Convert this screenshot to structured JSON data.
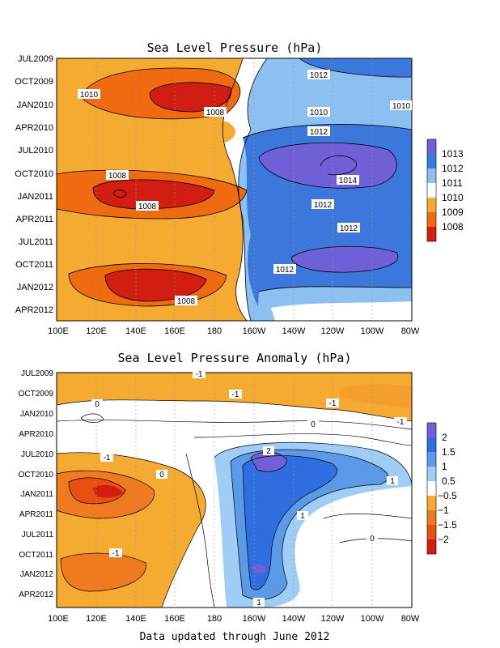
{
  "footer": "Data updated through June 2012",
  "chart_data": [
    {
      "type": "heatmap",
      "title": "Sea Level Pressure (hPa)",
      "x_ticks": [
        "100E",
        "120E",
        "140E",
        "160E",
        "180",
        "160W",
        "140W",
        "120W",
        "100W",
        "80W"
      ],
      "y_ticks": [
        "JUL2009",
        "OCT2009",
        "JAN2010",
        "APR2010",
        "JUL2010",
        "OCT2010",
        "JAN2011",
        "APR2011",
        "JUL2011",
        "OCT2011",
        "JAN2012",
        "APR2012"
      ],
      "colorbar": {
        "labels": [
          "1013",
          "1012",
          "1011",
          "1010",
          "1009",
          "1008"
        ],
        "colors": [
          "#7060d8",
          "#3c78dc",
          "#8cc0f0",
          "#ffffff",
          "#f5aa32",
          "#f06a10",
          "#d21e12"
        ]
      },
      "contour_labels": [
        "1012",
        "1010",
        "1008",
        "1010",
        "1010",
        "1012",
        "1008",
        "1014",
        "1008",
        "1012",
        "1012",
        "1012",
        "1008"
      ]
    },
    {
      "type": "heatmap",
      "title": "Sea Level Pressure Anomaly (hPa)",
      "x_ticks": [
        "100E",
        "120E",
        "140E",
        "160E",
        "180",
        "160W",
        "140W",
        "120W",
        "100W",
        "80W"
      ],
      "y_ticks": [
        "JUL2009",
        "OCT2009",
        "JAN2010",
        "APR2010",
        "JUL2010",
        "OCT2010",
        "JAN2011",
        "APR2011",
        "JUL2011",
        "OCT2011",
        "JAN2012",
        "APR2012"
      ],
      "colorbar": {
        "labels": [
          "2",
          "1.5",
          "1",
          "0.5",
          "−0.5",
          "−1",
          "−1.5",
          "−2"
        ],
        "colors": [
          "#7060d8",
          "#2f6ee0",
          "#5a9ae8",
          "#a0cdf5",
          "#ffffff",
          "#f5aa32",
          "#f07a20",
          "#e85010",
          "#d21e12"
        ]
      },
      "contour_labels": [
        "-1",
        "-1",
        "-1",
        "0",
        "-1",
        "0",
        "-1",
        "2",
        "0",
        "1",
        "1",
        "0",
        "-1",
        "1"
      ]
    }
  ]
}
